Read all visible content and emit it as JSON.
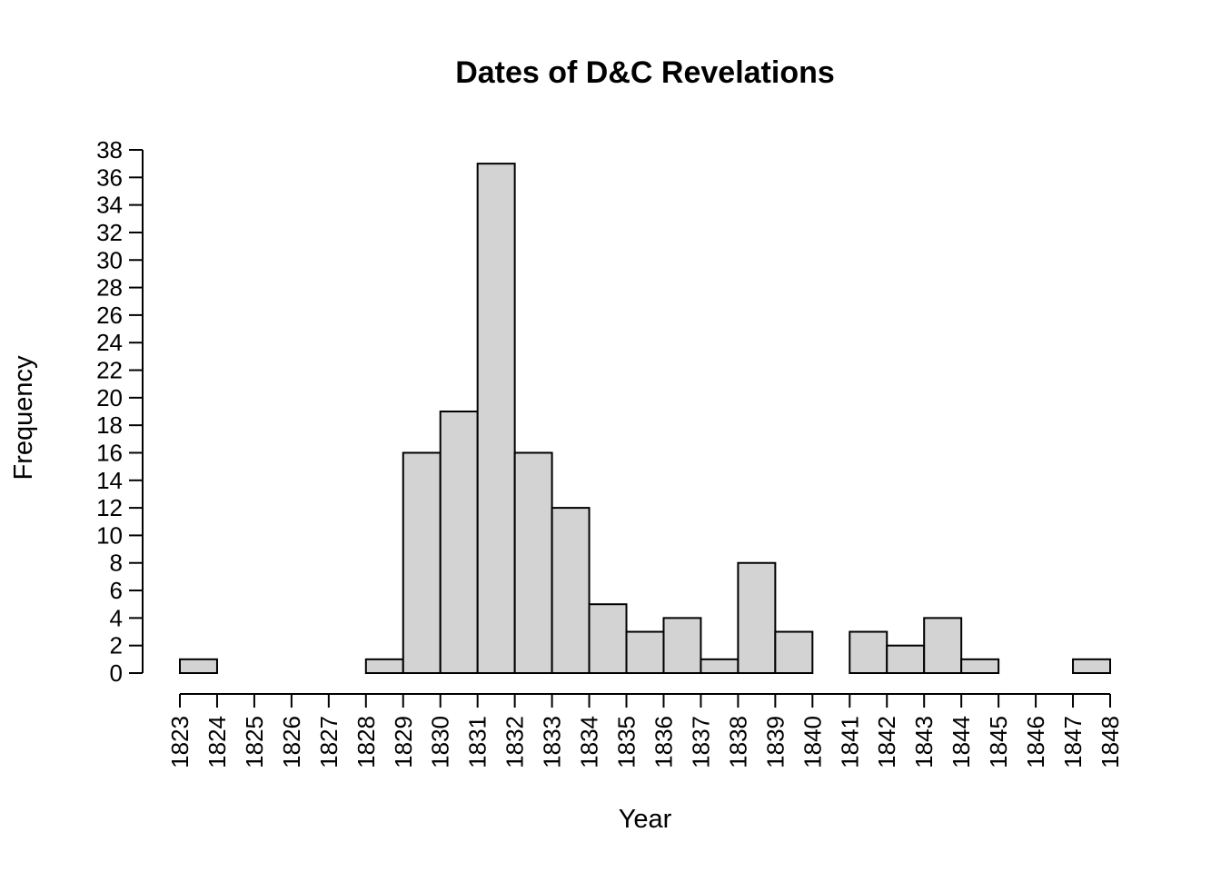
{
  "chart_data": {
    "type": "bar",
    "title": "Dates of D&C Revelations",
    "xlabel": "Year",
    "ylabel": "Frequency",
    "x_ticks": [
      1823,
      1824,
      1825,
      1826,
      1827,
      1828,
      1829,
      1830,
      1831,
      1832,
      1833,
      1834,
      1835,
      1836,
      1837,
      1838,
      1839,
      1840,
      1841,
      1842,
      1843,
      1844,
      1845,
      1846,
      1847,
      1848
    ],
    "y_ticks": [
      0,
      2,
      4,
      6,
      8,
      10,
      12,
      14,
      16,
      18,
      20,
      22,
      24,
      26,
      28,
      30,
      32,
      34,
      36,
      38
    ],
    "bins": [
      {
        "start": 1823,
        "end": 1824,
        "value": 1
      },
      {
        "start": 1824,
        "end": 1825,
        "value": 0
      },
      {
        "start": 1825,
        "end": 1826,
        "value": 0
      },
      {
        "start": 1826,
        "end": 1827,
        "value": 0
      },
      {
        "start": 1827,
        "end": 1828,
        "value": 0
      },
      {
        "start": 1828,
        "end": 1829,
        "value": 1
      },
      {
        "start": 1829,
        "end": 1830,
        "value": 16
      },
      {
        "start": 1830,
        "end": 1831,
        "value": 19
      },
      {
        "start": 1831,
        "end": 1832,
        "value": 37
      },
      {
        "start": 1832,
        "end": 1833,
        "value": 16
      },
      {
        "start": 1833,
        "end": 1834,
        "value": 12
      },
      {
        "start": 1834,
        "end": 1835,
        "value": 5
      },
      {
        "start": 1835,
        "end": 1836,
        "value": 3
      },
      {
        "start": 1836,
        "end": 1837,
        "value": 4
      },
      {
        "start": 1837,
        "end": 1838,
        "value": 1
      },
      {
        "start": 1838,
        "end": 1839,
        "value": 8
      },
      {
        "start": 1839,
        "end": 1840,
        "value": 3
      },
      {
        "start": 1840,
        "end": 1841,
        "value": 0
      },
      {
        "start": 1841,
        "end": 1842,
        "value": 3
      },
      {
        "start": 1842,
        "end": 1843,
        "value": 2
      },
      {
        "start": 1843,
        "end": 1844,
        "value": 4
      },
      {
        "start": 1844,
        "end": 1845,
        "value": 1
      },
      {
        "start": 1845,
        "end": 1846,
        "value": 0
      },
      {
        "start": 1846,
        "end": 1847,
        "value": 0
      },
      {
        "start": 1847,
        "end": 1848,
        "value": 1
      }
    ],
    "xlim": [
      1823,
      1848
    ],
    "ylim": [
      0,
      38
    ],
    "grid": false,
    "bar_color": "#d3d3d3",
    "edge_color": "#000000"
  }
}
